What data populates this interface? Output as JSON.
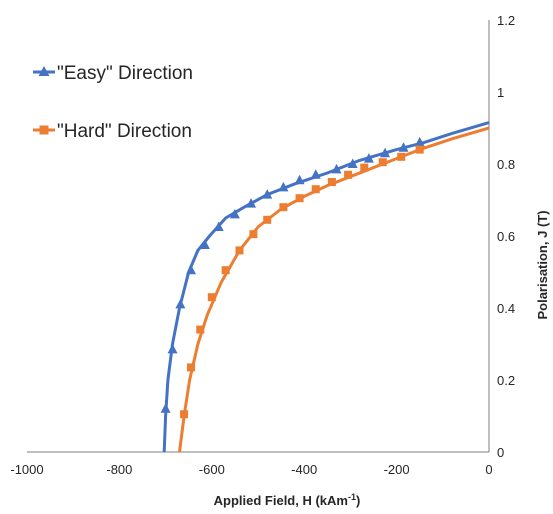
{
  "chart_data": {
    "type": "line",
    "xlabel_main": "Applied Field, H (kAm",
    "xlabel_sup": "-1",
    "xlabel_end": ")",
    "ylabel": "Polarisation, J (T)",
    "xlim": [
      -1000,
      0
    ],
    "ylim": [
      0,
      1.2
    ],
    "x_ticks": [
      "-1000",
      "-800",
      "-600",
      "-400",
      "-200",
      "0"
    ],
    "x_tick_values": [
      -1000,
      -800,
      -600,
      -400,
      -200,
      0
    ],
    "y_ticks": [
      "0",
      "0.2",
      "0.4",
      "0.6",
      "0.8",
      "1",
      "1.2"
    ],
    "y_tick_values": [
      0,
      0.2,
      0.4,
      0.6,
      0.8,
      1.0,
      1.2
    ],
    "y_axis_side": "right",
    "grid": false,
    "legend_position": "top-left",
    "series": [
      {
        "name": "\"Easy\" Direction",
        "color": "#4472C4",
        "marker": "triangle",
        "curve": [
          [
            -703,
            0
          ],
          [
            -700,
            0.1
          ],
          [
            -695,
            0.2
          ],
          [
            -685,
            0.3
          ],
          [
            -670,
            0.4
          ],
          [
            -650,
            0.5
          ],
          [
            -630,
            0.56
          ],
          [
            -605,
            0.6
          ],
          [
            -570,
            0.65
          ],
          [
            -530,
            0.68
          ],
          [
            -480,
            0.715
          ],
          [
            -420,
            0.745
          ],
          [
            -350,
            0.775
          ],
          [
            -280,
            0.81
          ],
          [
            -200,
            0.84
          ],
          [
            -140,
            0.86
          ],
          [
            -80,
            0.885
          ],
          [
            0,
            0.915
          ]
        ],
        "points": [
          [
            -700,
            0.12
          ],
          [
            -685,
            0.285
          ],
          [
            -668,
            0.41
          ],
          [
            -645,
            0.505
          ],
          [
            -615,
            0.575
          ],
          [
            -585,
            0.625
          ],
          [
            -550,
            0.66
          ],
          [
            -515,
            0.69
          ],
          [
            -480,
            0.715
          ],
          [
            -445,
            0.735
          ],
          [
            -410,
            0.755
          ],
          [
            -375,
            0.77
          ],
          [
            -330,
            0.785
          ],
          [
            -295,
            0.8
          ],
          [
            -260,
            0.815
          ],
          [
            -225,
            0.83
          ],
          [
            -185,
            0.845
          ],
          [
            -150,
            0.86
          ]
        ]
      },
      {
        "name": "\"Hard\" Direction",
        "color": "#ED7D31",
        "marker": "square",
        "curve": [
          [
            -670,
            0
          ],
          [
            -660,
            0.1
          ],
          [
            -648,
            0.2
          ],
          [
            -630,
            0.3
          ],
          [
            -610,
            0.38
          ],
          [
            -580,
            0.47
          ],
          [
            -540,
            0.56
          ],
          [
            -500,
            0.625
          ],
          [
            -450,
            0.675
          ],
          [
            -400,
            0.71
          ],
          [
            -350,
            0.74
          ],
          [
            -290,
            0.77
          ],
          [
            -230,
            0.8
          ],
          [
            -150,
            0.84
          ],
          [
            -80,
            0.87
          ],
          [
            0,
            0.9
          ]
        ],
        "points": [
          [
            -660,
            0.105
          ],
          [
            -645,
            0.235
          ],
          [
            -625,
            0.34
          ],
          [
            -600,
            0.43
          ],
          [
            -570,
            0.505
          ],
          [
            -540,
            0.56
          ],
          [
            -510,
            0.605
          ],
          [
            -480,
            0.645
          ],
          [
            -445,
            0.68
          ],
          [
            -410,
            0.705
          ],
          [
            -375,
            0.73
          ],
          [
            -340,
            0.75
          ],
          [
            -305,
            0.77
          ],
          [
            -270,
            0.79
          ],
          [
            -230,
            0.805
          ],
          [
            -190,
            0.82
          ],
          [
            -150,
            0.84
          ]
        ]
      }
    ]
  }
}
